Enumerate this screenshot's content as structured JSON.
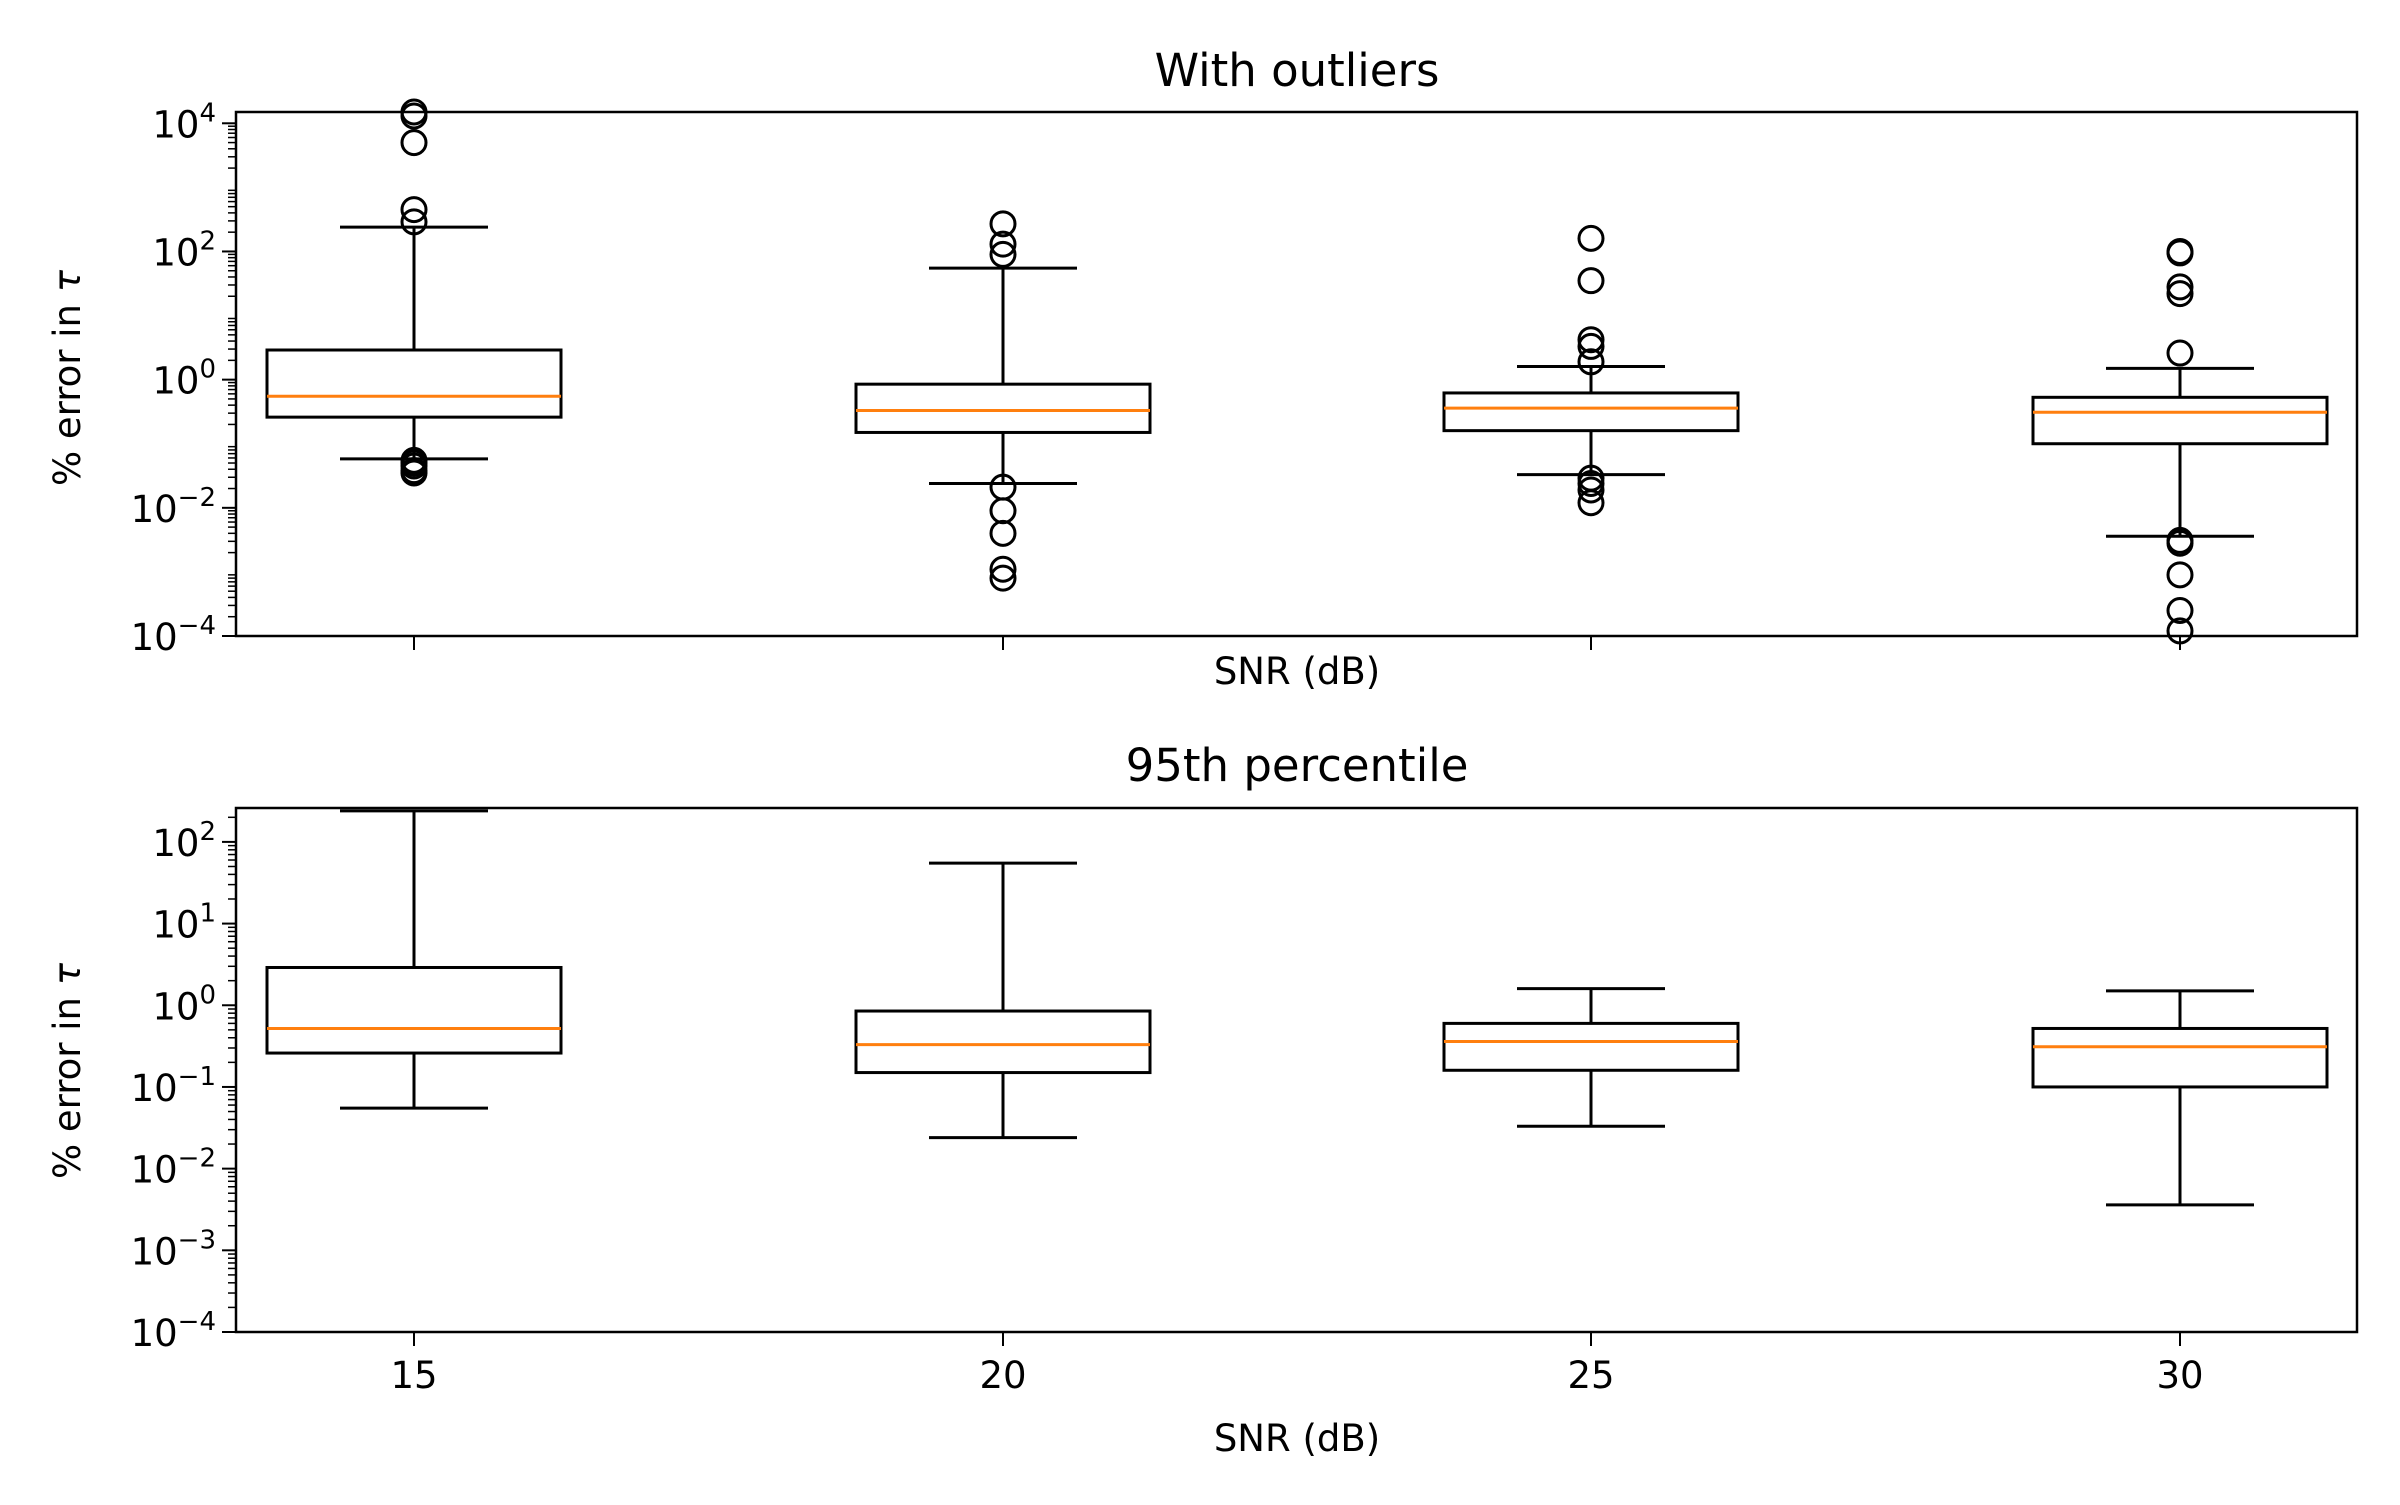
{
  "figure": {
    "xlabel": "SNR (dB)",
    "ylabel_prefix": "% error in ",
    "ylabel_symbol": "τ"
  },
  "colors": {
    "box_edge": "#000000",
    "median": "#ff7f0e",
    "background": "#ffffff"
  },
  "chart_data": [
    {
      "type": "box",
      "title": "With outliers",
      "xlabel": "SNR (dB)",
      "ylabel": "% error in τ",
      "yscale": "log",
      "ylim": [
        0.0001,
        15000
      ],
      "categories": [
        15,
        20,
        25,
        30
      ],
      "show_xtick_labels": false,
      "ytick_labels": [
        {
          "value": 0.0001,
          "base": "10",
          "exp": "−4"
        },
        {
          "value": 0.01,
          "base": "10",
          "exp": "−2"
        },
        {
          "value": 1,
          "base": "10",
          "exp": "0"
        },
        {
          "value": 100,
          "base": "10",
          "exp": "2"
        },
        {
          "value": 10000,
          "base": "10",
          "exp": "4"
        }
      ],
      "boxes": [
        {
          "x": 15,
          "whisker_low": 0.058,
          "q1": 0.26,
          "median": 0.55,
          "q3": 2.9,
          "whisker_high": 240,
          "fliers": [
            0.035,
            0.038,
            0.045,
            0.05,
            0.055,
            290,
            450,
            5000,
            13000,
            15000
          ]
        },
        {
          "x": 20,
          "whisker_low": 0.024,
          "q1": 0.15,
          "median": 0.33,
          "q3": 0.85,
          "whisker_high": 55,
          "fliers": [
            0.021,
            0.009,
            0.004,
            0.0011,
            0.0008,
            90,
            130,
            270
          ]
        },
        {
          "x": 25,
          "whisker_low": 0.033,
          "q1": 0.16,
          "median": 0.36,
          "q3": 0.62,
          "whisker_high": 1.6,
          "fliers": [
            0.029,
            0.024,
            0.019,
            0.012,
            1.9,
            3.3,
            4.2,
            35,
            160
          ]
        },
        {
          "x": 30,
          "whisker_low": 0.0036,
          "q1": 0.1,
          "median": 0.31,
          "q3": 0.53,
          "whisker_high": 1.5,
          "fliers": [
            0.0031,
            0.0028,
            0.0009,
            0.00025,
            0.00012,
            2.6,
            22,
            28,
            95,
            100
          ]
        }
      ]
    },
    {
      "type": "box",
      "title": "95th percentile",
      "xlabel": "SNR (dB)",
      "ylabel": "% error in τ",
      "yscale": "log",
      "ylim": [
        0.0001,
        260
      ],
      "categories": [
        15,
        20,
        25,
        30
      ],
      "show_xtick_labels": true,
      "xtick_labels": [
        "15",
        "20",
        "25",
        "30"
      ],
      "ytick_labels": [
        {
          "value": 0.0001,
          "base": "10",
          "exp": "−4"
        },
        {
          "value": 0.001,
          "base": "10",
          "exp": "−3"
        },
        {
          "value": 0.01,
          "base": "10",
          "exp": "−2"
        },
        {
          "value": 0.1,
          "base": "10",
          "exp": "−1"
        },
        {
          "value": 1,
          "base": "10",
          "exp": "0"
        },
        {
          "value": 10,
          "base": "10",
          "exp": "1"
        },
        {
          "value": 100,
          "base": "10",
          "exp": "2"
        }
      ],
      "boxes": [
        {
          "x": 15,
          "whisker_low": 0.055,
          "q1": 0.26,
          "median": 0.52,
          "q3": 2.9,
          "whisker_high": 240,
          "fliers": []
        },
        {
          "x": 20,
          "whisker_low": 0.024,
          "q1": 0.15,
          "median": 0.33,
          "q3": 0.85,
          "whisker_high": 55,
          "fliers": []
        },
        {
          "x": 25,
          "whisker_low": 0.033,
          "q1": 0.16,
          "median": 0.36,
          "q3": 0.6,
          "whisker_high": 1.6,
          "fliers": []
        },
        {
          "x": 30,
          "whisker_low": 0.0036,
          "q1": 0.1,
          "median": 0.31,
          "q3": 0.52,
          "whisker_high": 1.5,
          "fliers": []
        }
      ]
    }
  ]
}
